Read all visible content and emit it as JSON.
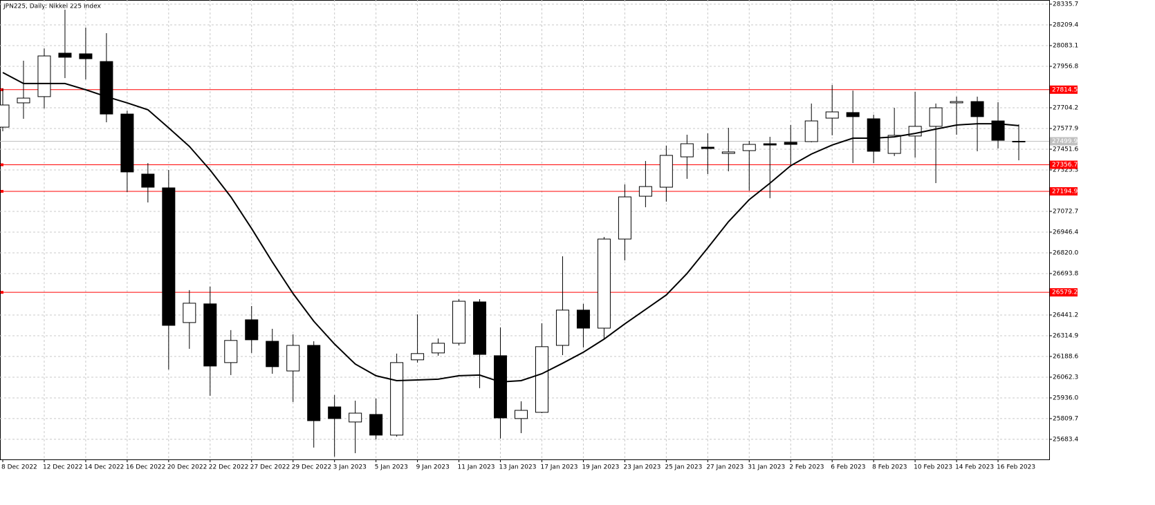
{
  "chart_data": {
    "type": "candlestick",
    "title": "JPN225, Daily:  Nikkei 225 Index",
    "categories": [
      "8 Dec 2022",
      null,
      "12 Dec 2022",
      null,
      "14 Dec 2022",
      null,
      "16 Dec 2022",
      null,
      "20 Dec 2022",
      null,
      "22 Dec 2022",
      null,
      "27 Dec 2022",
      null,
      "29 Dec 2022",
      null,
      "3 Jan 2023",
      null,
      "5 Jan 2023",
      null,
      "9 Jan 2023",
      null,
      "11 Jan 2023",
      null,
      "13 Jan 2023",
      null,
      "17 Jan 2023",
      null,
      "19 Jan 2023",
      null,
      "23 Jan 2023",
      null,
      "25 Jan 2023",
      null,
      "27 Jan 2023",
      null,
      "31 Jan 2023",
      null,
      "2 Feb 2023",
      null,
      "6 Feb 2023",
      null,
      "8 Feb 2023",
      null,
      "10 Feb 2023",
      null,
      "14 Feb 2023",
      null,
      "16 Feb 2023",
      null
    ],
    "open": [
      27586,
      27734,
      27772,
      28037,
      28033,
      27986,
      27666,
      27300,
      27216,
      26395,
      26509,
      26151,
      26412,
      26281,
      26100,
      26256,
      25881,
      25789,
      25835,
      25709,
      26168,
      26210,
      26269,
      26521,
      26193,
      25810,
      25848,
      26256,
      26471,
      26361,
      26904,
      27165,
      27220,
      27405,
      27464,
      27426,
      27443,
      27485,
      27494,
      27498,
      27641,
      27675,
      27637,
      27426,
      27532,
      27591,
      27734,
      27742,
      27624,
      27500
    ],
    "high": [
      27822,
      27991,
      28066,
      28302,
      28193,
      28159,
      27687,
      27367,
      27325,
      26593,
      26614,
      26349,
      26496,
      26357,
      26323,
      26281,
      25953,
      25919,
      25932,
      26206,
      26445,
      26298,
      26538,
      26538,
      26366,
      25915,
      26391,
      26799,
      26509,
      26917,
      27237,
      27380,
      27473,
      27540,
      27548,
      27582,
      27502,
      27527,
      27599,
      27730,
      27843,
      27809,
      27662,
      27704,
      27801,
      27730,
      27772,
      27772,
      27738,
      27603
    ],
    "low": [
      27561,
      27637,
      27700,
      27885,
      27877,
      27616,
      27191,
      27127,
      26109,
      26235,
      25949,
      26075,
      26210,
      26083,
      25911,
      25633,
      25578,
      25599,
      25683,
      25700,
      26151,
      26193,
      26256,
      25995,
      25688,
      25721,
      25843,
      26197,
      26243,
      26298,
      26774,
      27098,
      27132,
      27271,
      27300,
      27317,
      27199,
      27153,
      27359,
      27494,
      27536,
      27367,
      27367,
      27410,
      27401,
      27245,
      27540,
      27439,
      27456,
      27384
    ],
    "close": [
      27721,
      27763,
      28020,
      28012,
      28003,
      27666,
      27313,
      27220,
      26378,
      26513,
      26130,
      26286,
      26290,
      26126,
      26256,
      25797,
      25810,
      25843,
      25709,
      26151,
      26206,
      26269,
      26525,
      26201,
      25814,
      25860,
      26248,
      26471,
      26361,
      26904,
      27161,
      27224,
      27414,
      27485,
      27456,
      27435,
      27481,
      27477,
      27481,
      27624,
      27679,
      27650,
      27439,
      27536,
      27591,
      27704,
      27742,
      27650,
      27506,
      27499.9
    ],
    "ma": {
      "color": "#000000",
      "values": [
        27919,
        27852,
        27852,
        27852,
        27814,
        27772,
        27734,
        27692,
        27582,
        27469,
        27325,
        27161,
        26968,
        26765,
        26572,
        26403,
        26264,
        26142,
        26071,
        26041,
        26045,
        26050,
        26071,
        26075,
        26033,
        26041,
        26083,
        26147,
        26214,
        26294,
        26387,
        26475,
        26563,
        26694,
        26850,
        27010,
        27144,
        27245,
        27351,
        27422,
        27477,
        27519,
        27519,
        27527,
        27548,
        27574,
        27599,
        27607,
        27607,
        27595
      ]
    },
    "up_color": "#ffffff",
    "down_color": "#000000",
    "levels": [
      27814.5,
      27356.7,
      27194.9,
      26579.2
    ],
    "levels_color": "#ff0000",
    "last_price": 27499.9,
    "last_price_color": "#c0c0c0",
    "ylim": [
      25561,
      28361
    ],
    "yticks": [
      28335.7,
      28209.4,
      28083.1,
      27956.8,
      27704.2,
      27577.9,
      27451.6,
      27325.3,
      27072.7,
      26946.4,
      {
        "value": 26820.0,
        "label": "26820.0"
      },
      26693.8,
      26441.2,
      26314.9,
      26188.6,
      26062.3,
      {
        "value": 25936.0,
        "label": "25936.0"
      },
      25809.7,
      25683.4
    ],
    "grid": true
  }
}
